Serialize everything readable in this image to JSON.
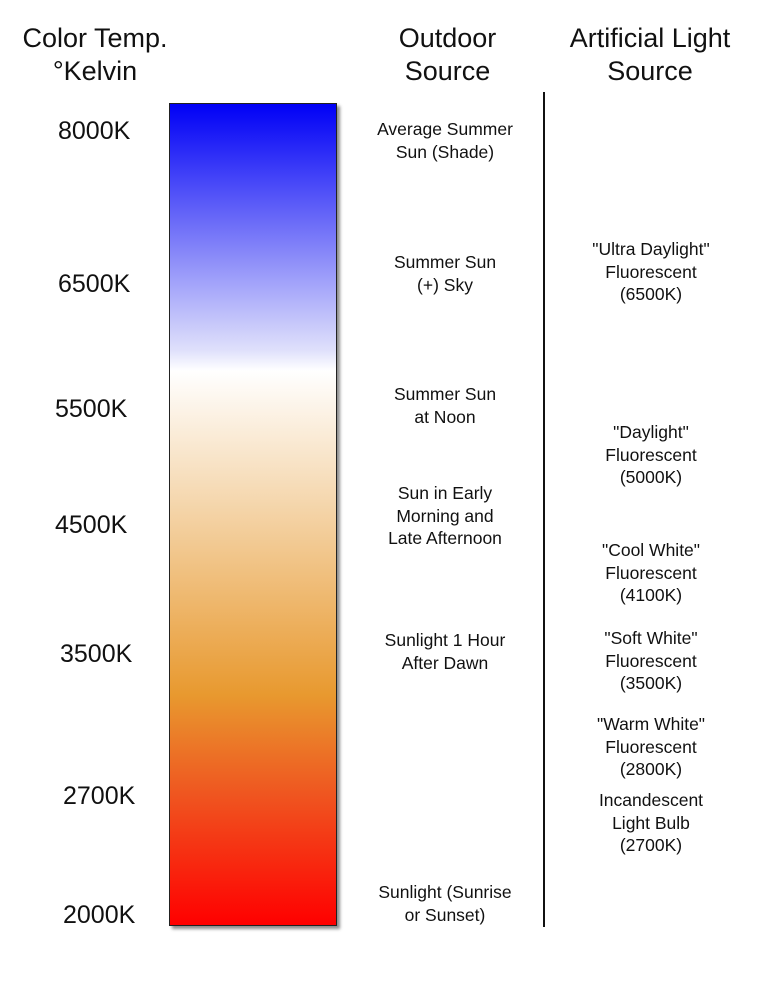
{
  "header": {
    "temp": [
      "Color Temp.",
      "°Kelvin"
    ],
    "outdoor": [
      "Outdoor",
      "Source"
    ],
    "artificial": [
      "Artificial Light",
      "Source"
    ]
  },
  "gradient_colors": [
    "#0000f6",
    "#dfe0fb",
    "#ffffff",
    "#f5d8b0",
    "#e8992f",
    "#ef5620",
    "#ff0000"
  ],
  "kelvin_labels": [
    "8000K",
    "6500K",
    "5500K",
    "4500K",
    "3500K",
    "2700K",
    "2000K"
  ],
  "outdoor_sources": [
    [
      "Average Summer",
      "Sun (Shade)"
    ],
    [
      "Summer Sun",
      "(+) Sky"
    ],
    [
      "Summer Sun",
      "at Noon"
    ],
    [
      "Sun in Early",
      "Morning and",
      "Late Afternoon"
    ],
    [
      "Sunlight 1 Hour",
      "After Dawn"
    ],
    [
      "Sunlight (Sunrise",
      "or Sunset)"
    ]
  ],
  "artificial_sources": [
    [
      "\"Ultra Daylight\"",
      "Fluorescent",
      "(6500K)"
    ],
    [
      "\"Daylight\"",
      "Fluorescent",
      "(5000K)"
    ],
    [
      "\"Cool White\"",
      "Fluorescent",
      "(4100K)"
    ],
    [
      "\"Soft White\"",
      "Fluorescent",
      "(3500K)"
    ],
    [
      "\"Warm White\"",
      "Fluorescent",
      "(2800K)"
    ],
    [
      "Incandescent",
      "Light Bulb",
      "(2700K)"
    ]
  ]
}
